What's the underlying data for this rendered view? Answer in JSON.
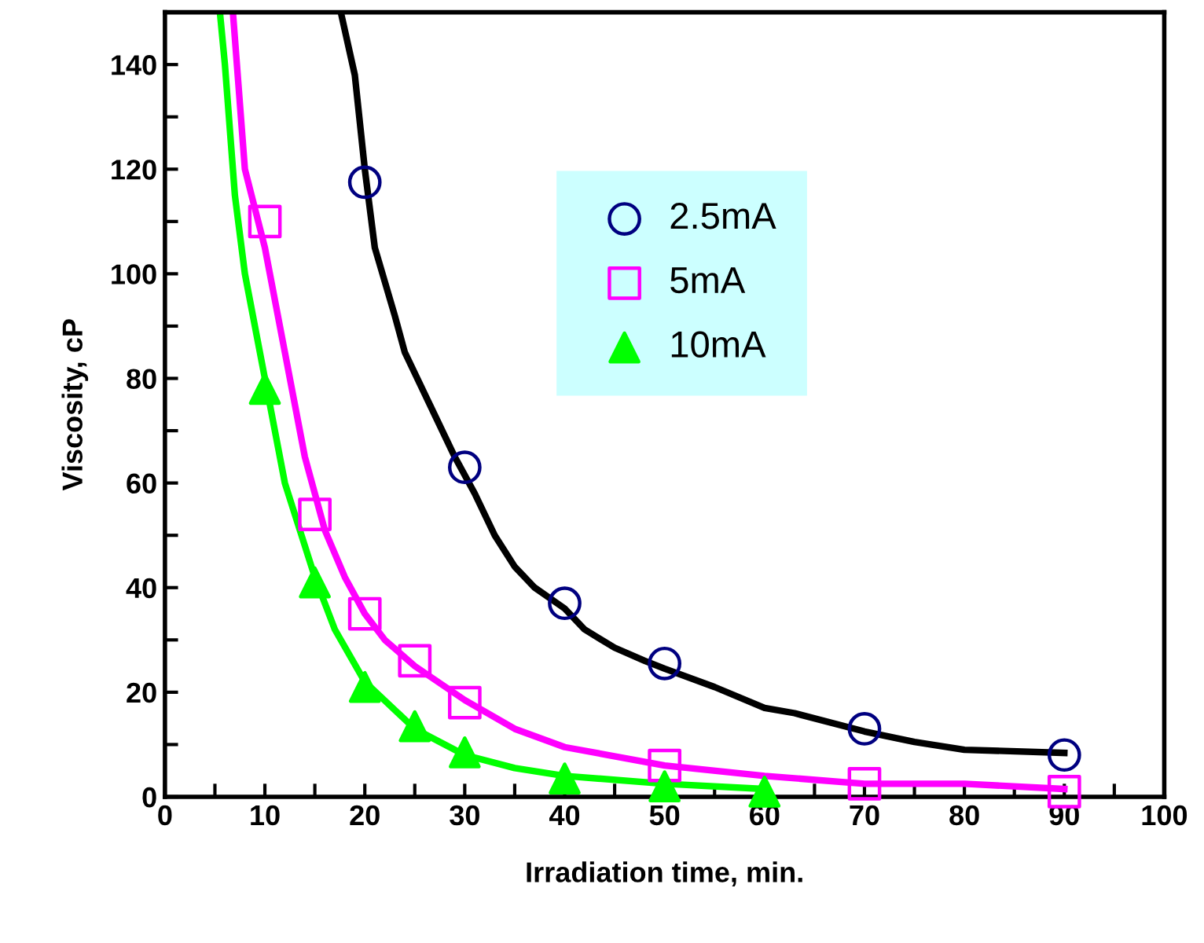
{
  "chart_data": {
    "type": "scatter",
    "xlabel": "Irradiation time, min.",
    "ylabel": "Viscosity, cP",
    "xlim": [
      0,
      100
    ],
    "ylim": [
      0,
      150
    ],
    "xticks": [
      0,
      10,
      20,
      30,
      40,
      50,
      60,
      70,
      80,
      90,
      100
    ],
    "yticks": [
      0,
      20,
      40,
      60,
      80,
      100,
      120,
      140
    ],
    "grid": false,
    "legend": "top right",
    "series": [
      {
        "name": "2.5mA",
        "marker": "circle",
        "color": "#000080",
        "x": [
          20,
          30,
          40,
          50,
          70,
          90
        ],
        "values": [
          117.5,
          63,
          37,
          25.5,
          13,
          8
        ]
      },
      {
        "name": "5mA",
        "marker": "square",
        "color": "#ff00ff",
        "x": [
          10,
          15,
          20,
          25,
          30,
          50,
          70,
          90
        ],
        "values": [
          110,
          54,
          35,
          26,
          18,
          6,
          2.5,
          1
        ]
      },
      {
        "name": "10mA",
        "marker": "triangle",
        "color": "#00ff00",
        "x": [
          10,
          15,
          20,
          25,
          30,
          40,
          50,
          60
        ],
        "values": [
          78,
          41,
          21,
          13.5,
          8.5,
          3.5,
          2,
          1
        ]
      },
      {
        "type": "line",
        "marker": "none",
        "color": "#000000",
        "x": [
          17.6,
          19,
          20,
          21,
          23,
          24,
          27,
          29,
          31,
          33,
          35,
          37,
          40,
          42,
          45,
          48,
          50,
          55,
          60,
          63,
          70,
          75,
          80,
          90
        ],
        "values": [
          150,
          138,
          120,
          105,
          92,
          85,
          73,
          65,
          58,
          50,
          44,
          40,
          36,
          32,
          28.5,
          26,
          24.5,
          21,
          17,
          16,
          12.5,
          10.5,
          9,
          8.4
        ]
      },
      {
        "type": "line",
        "marker": "none",
        "color": "#ff00ff",
        "x": [
          6.8,
          8,
          10,
          12,
          14,
          16,
          18,
          20,
          22,
          25,
          30,
          35,
          40,
          50,
          60,
          70,
          80,
          90
        ],
        "values": [
          150,
          120,
          105,
          85,
          65,
          51,
          42,
          35,
          30,
          25,
          18.5,
          13,
          9.5,
          6,
          4,
          2.5,
          2.5,
          1.5
        ]
      },
      {
        "type": "line",
        "marker": "none",
        "color": "#00ff00",
        "x": [
          5.5,
          6,
          7,
          8,
          10,
          12,
          15,
          17,
          20,
          25,
          30,
          35,
          40,
          50,
          60
        ],
        "values": [
          150,
          140,
          115,
          100,
          80,
          60,
          42,
          32,
          22,
          13,
          8,
          5.5,
          4,
          2.5,
          1.5
        ]
      }
    ]
  }
}
